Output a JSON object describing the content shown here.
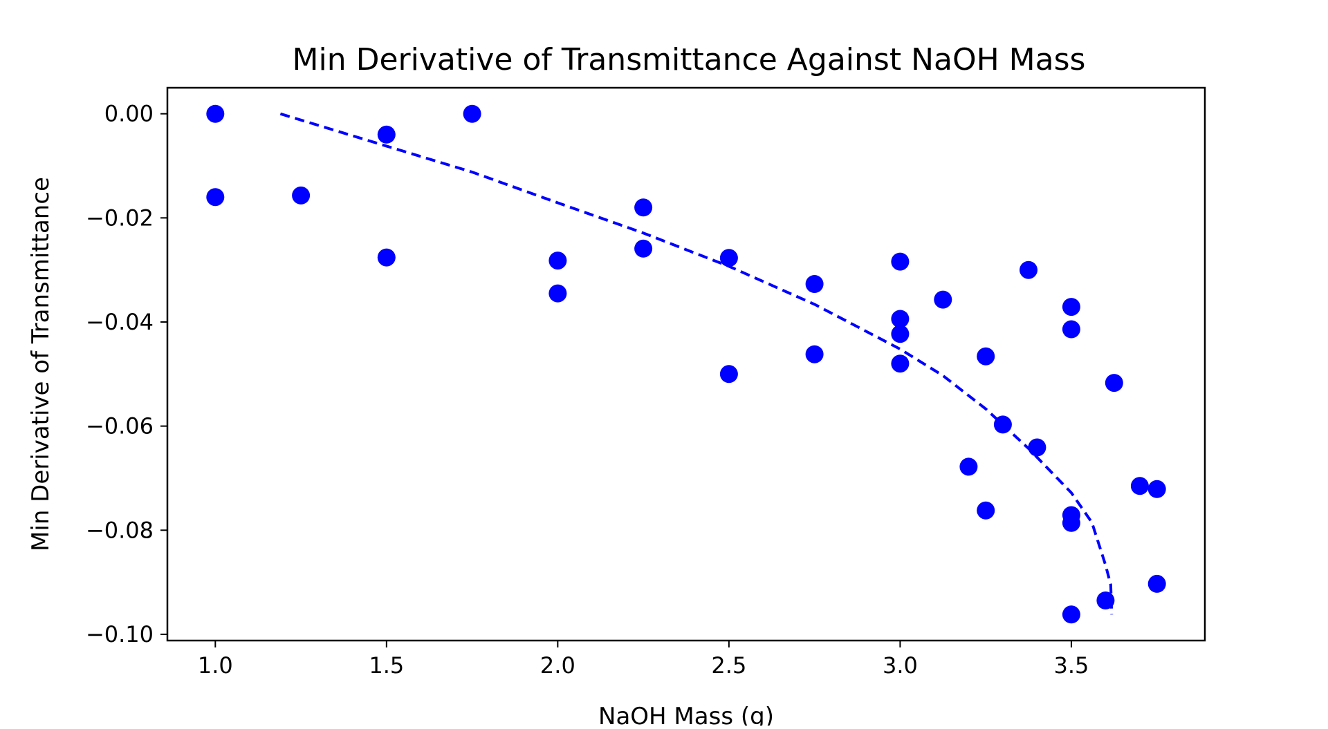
{
  "chart_data": {
    "type": "scatter",
    "title": "Min Derivative of Transmittance Against NaOH Mass",
    "xlabel": "NaOH Mass (g)",
    "ylabel": "Min Derivative of Transmittance",
    "xlim": [
      0.86,
      3.89
    ],
    "ylim": [
      -0.1012,
      0.005
    ],
    "x_ticks": [
      1.0,
      1.5,
      2.0,
      2.5,
      3.0,
      3.5
    ],
    "x_tick_labels": [
      "1.0",
      "1.5",
      "2.0",
      "2.5",
      "3.0",
      "3.5"
    ],
    "y_ticks": [
      0.0,
      -0.02,
      -0.04,
      -0.06,
      -0.08,
      -0.1
    ],
    "y_tick_labels": [
      "0.00",
      "−0.02",
      "−0.04",
      "−0.06",
      "−0.08",
      "−0.10"
    ],
    "grid": false,
    "legend": "none",
    "marker_color": "#0000ff",
    "line_color": "#0000ff",
    "series": [
      {
        "kind": "points",
        "points": [
          [
            1.0,
            0.0
          ],
          [
            1.0,
            -0.016
          ],
          [
            1.25,
            -0.0157
          ],
          [
            1.5,
            -0.004
          ],
          [
            1.5,
            -0.0276
          ],
          [
            1.75,
            0.0
          ],
          [
            2.0,
            -0.0282
          ],
          [
            2.0,
            -0.0345
          ],
          [
            2.25,
            -0.018
          ],
          [
            2.25,
            -0.0259
          ],
          [
            2.5,
            -0.0277
          ],
          [
            2.5,
            -0.05
          ],
          [
            2.75,
            -0.0327
          ],
          [
            2.75,
            -0.0462
          ],
          [
            3.0,
            -0.0284
          ],
          [
            3.0,
            -0.0394
          ],
          [
            3.0,
            -0.0423
          ],
          [
            3.0,
            -0.048
          ],
          [
            3.125,
            -0.0357
          ],
          [
            3.2,
            -0.0678
          ],
          [
            3.25,
            -0.0466
          ],
          [
            3.25,
            -0.0762
          ],
          [
            3.3,
            -0.0597
          ],
          [
            3.375,
            -0.03
          ],
          [
            3.4,
            -0.0641
          ],
          [
            3.5,
            -0.0371
          ],
          [
            3.5,
            -0.0414
          ],
          [
            3.5,
            -0.0771
          ],
          [
            3.5,
            -0.0786
          ],
          [
            3.5,
            -0.0962
          ],
          [
            3.6,
            -0.0935
          ],
          [
            3.625,
            -0.0517
          ],
          [
            3.7,
            -0.0715
          ],
          [
            3.75,
            -0.0721
          ],
          [
            3.75,
            -0.0903
          ]
        ]
      },
      {
        "kind": "fit",
        "style": "dashed",
        "points": [
          [
            1.19,
            0.0
          ],
          [
            1.5,
            -0.0062
          ],
          [
            1.75,
            -0.0112
          ],
          [
            2.0,
            -0.0171
          ],
          [
            2.25,
            -0.0229
          ],
          [
            2.5,
            -0.0293
          ],
          [
            2.75,
            -0.0366
          ],
          [
            3.0,
            -0.0452
          ],
          [
            3.125,
            -0.0503
          ],
          [
            3.25,
            -0.0567
          ],
          [
            3.375,
            -0.0643
          ],
          [
            3.5,
            -0.0728
          ],
          [
            3.56,
            -0.0785
          ],
          [
            3.6,
            -0.0867
          ],
          [
            3.615,
            -0.0905
          ],
          [
            3.618,
            -0.0962
          ]
        ]
      }
    ]
  }
}
